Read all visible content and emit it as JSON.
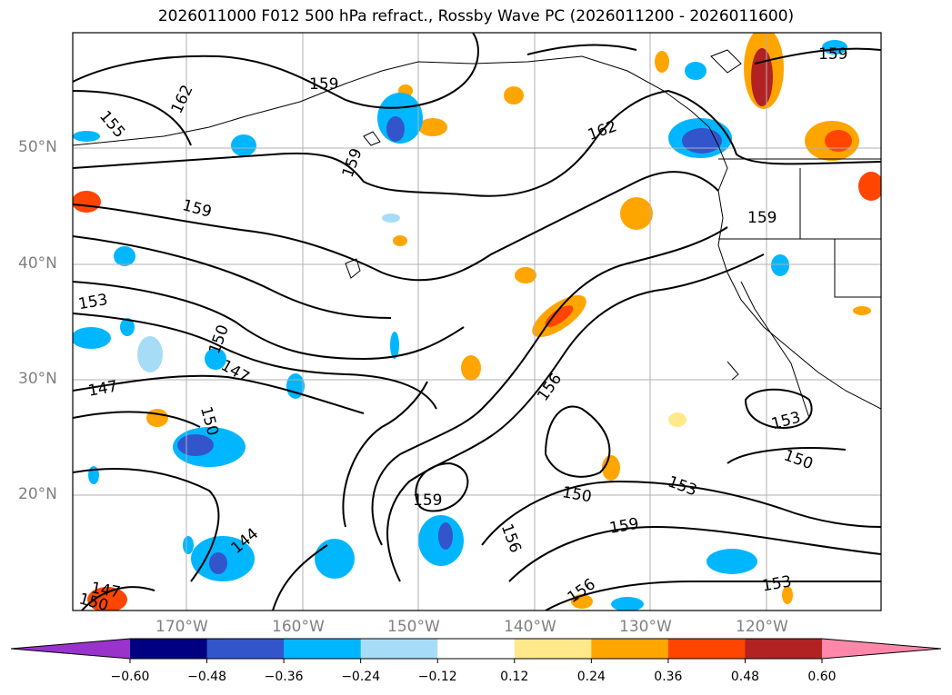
{
  "title": "2026011000 F012 500 hPa refract., Rossby Wave PC (2026011200 - 2026011600)",
  "lat_labels": [
    "50°N",
    "40°N",
    "30°N",
    "20°N"
  ],
  "lon_labels": [
    "170°W",
    "160°W",
    "150°W",
    "140°W",
    "130°W",
    "120°W"
  ],
  "contour_labels": [
    "162",
    "159",
    "155",
    "159",
    "162",
    "159",
    "159",
    "159",
    "153",
    "150",
    "147",
    "147",
    "150",
    "156",
    "153",
    "159",
    "150",
    "153",
    "150",
    "159",
    "156",
    "144",
    "147",
    "150",
    "156",
    "153"
  ],
  "colorbar": {
    "ticks": [
      "−0.60",
      "−0.48",
      "−0.36",
      "−0.24",
      "−0.12",
      "0.12",
      "0.24",
      "0.36",
      "0.48",
      "0.60"
    ],
    "colors": [
      "#9933cc",
      "#000080",
      "#3355cc",
      "#00b7ff",
      "#a7dcf7",
      "#ffffff",
      "#ffe98a",
      "#ffa500",
      "#ff4500",
      "#b22222",
      "#ff88aa"
    ]
  }
}
